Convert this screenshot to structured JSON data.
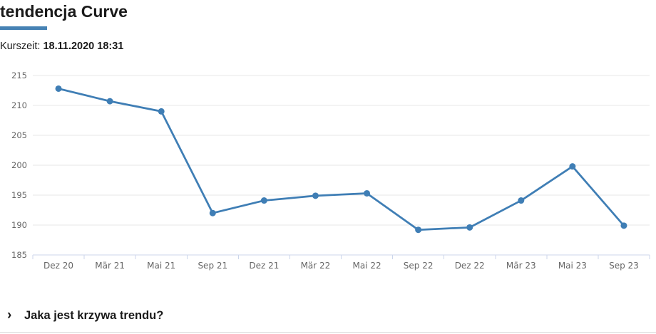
{
  "header": {
    "title": "tendencja Curve",
    "kurszeit_label": "Kurszeit:",
    "kurszeit_value": "18.11.2020 18:31",
    "accent_color": "#4682b4"
  },
  "chart_data": {
    "type": "line",
    "title": "",
    "xlabel": "",
    "ylabel": "",
    "categories": [
      "Dez 20",
      "Mär 21",
      "Mai 21",
      "Sep 21",
      "Dez 21",
      "Mär 22",
      "Mai 22",
      "Sep 22",
      "Dez 22",
      "Mär 23",
      "Mai 23",
      "Sep 23"
    ],
    "values": [
      212.8,
      210.7,
      209.0,
      192.0,
      194.1,
      194.9,
      195.3,
      189.2,
      189.6,
      194.1,
      199.8,
      189.9
    ],
    "ylim": [
      185,
      215
    ],
    "y_ticks": [
      185,
      190,
      195,
      200,
      205,
      210,
      215
    ],
    "grid": true,
    "legend": "none",
    "line_color": "#3f7eb5",
    "marker_color": "#3f7eb5",
    "grid_color": "#e7e7e7",
    "axis_line_color": "#ccd6eb",
    "label_color": "#666666"
  },
  "footer": {
    "chevron": "›",
    "question": "Jaka jest krzywa trendu?"
  }
}
